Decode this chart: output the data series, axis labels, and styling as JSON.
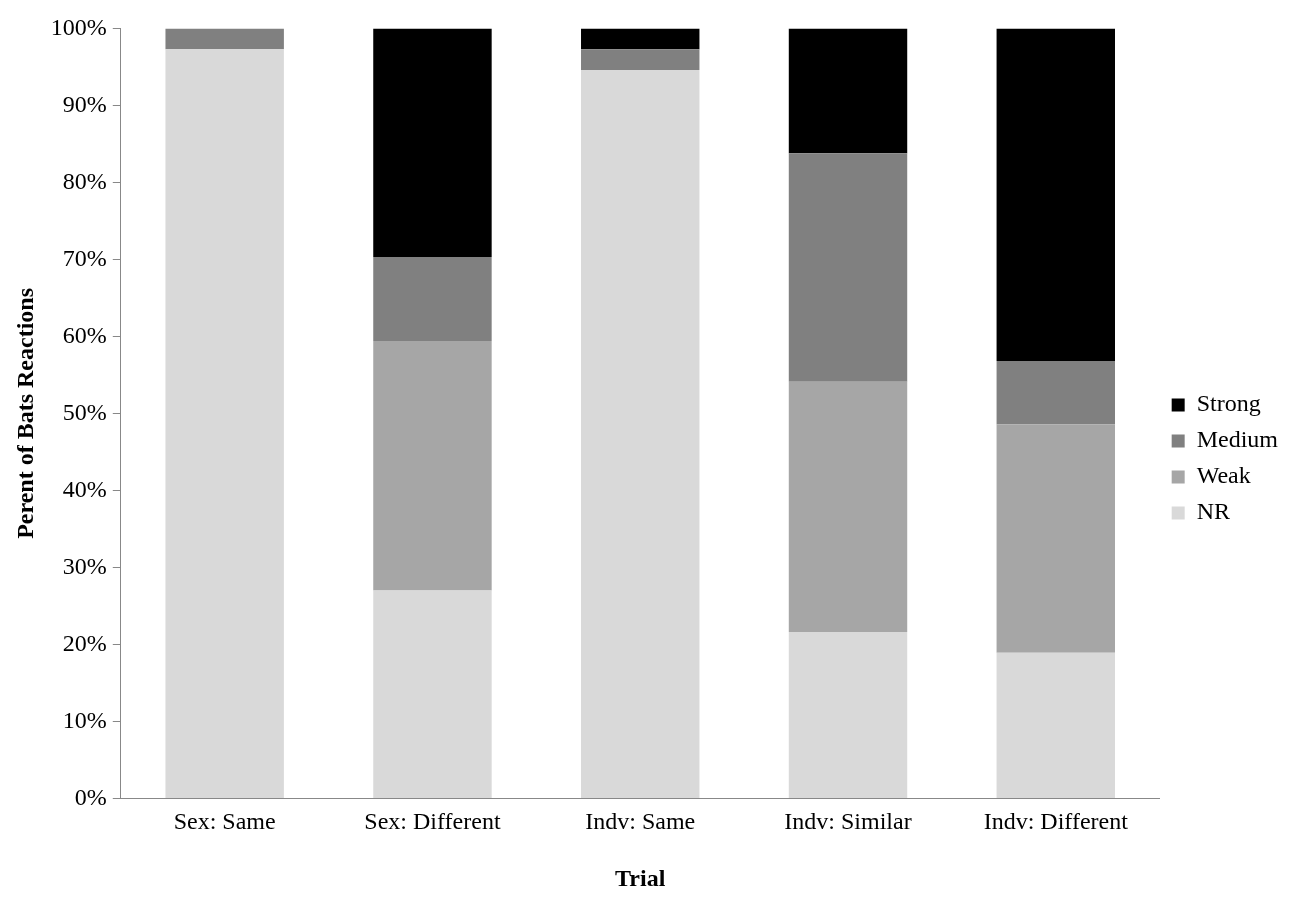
{
  "chart_data": {
    "type": "bar",
    "stacked": true,
    "xlabel": "Trial",
    "ylabel": "Perent of Bats Reactions",
    "categories": [
      "Sex: Same",
      "Sex: Different",
      "Indv: Same",
      "Indv: Similar",
      "Indv: Different"
    ],
    "series": [
      {
        "name": "NR",
        "color": "#d9d9d9",
        "values": [
          97.3,
          27.0,
          94.6,
          21.6,
          18.9
        ]
      },
      {
        "name": "Weak",
        "color": "#a6a6a6",
        "values": [
          0,
          32.4,
          0,
          32.5,
          29.7
        ]
      },
      {
        "name": "Medium",
        "color": "#808080",
        "values": [
          2.7,
          10.9,
          2.7,
          29.7,
          8.2
        ]
      },
      {
        "name": "Strong",
        "color": "#000000",
        "values": [
          0,
          29.7,
          2.7,
          16.2,
          43.2
        ]
      }
    ],
    "ylim": [
      0,
      100
    ],
    "yticks": [
      {
        "value": 0,
        "label": "0%"
      },
      {
        "value": 10,
        "label": "10%"
      },
      {
        "value": 20,
        "label": "20%"
      },
      {
        "value": 30,
        "label": "30%"
      },
      {
        "value": 40,
        "label": "40%"
      },
      {
        "value": 50,
        "label": "50%"
      },
      {
        "value": 60,
        "label": "60%"
      },
      {
        "value": 70,
        "label": "70%"
      },
      {
        "value": 80,
        "label": "80%"
      },
      {
        "value": 90,
        "label": "90%"
      },
      {
        "value": 100,
        "label": "100%"
      }
    ],
    "grid": false,
    "legend": "right"
  }
}
